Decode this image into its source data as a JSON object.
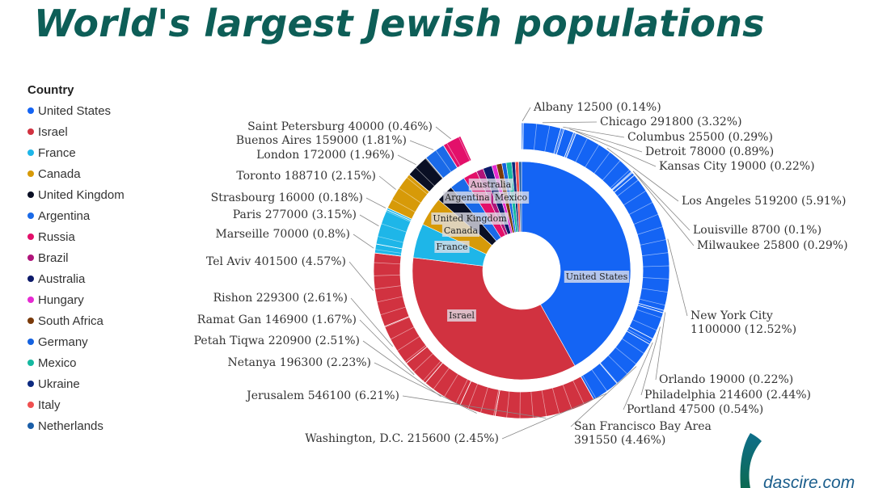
{
  "title": "World's largest Jewish populations",
  "legend": {
    "title": "Country",
    "items": [
      {
        "label": "United States",
        "color": "#1464f4"
      },
      {
        "label": "Israel",
        "color": "#d13240"
      },
      {
        "label": "France",
        "color": "#1eb6e8"
      },
      {
        "label": "Canada",
        "color": "#d79a08"
      },
      {
        "label": "United Kingdom",
        "color": "#0a0f24"
      },
      {
        "label": "Argentina",
        "color": "#1a6ae8"
      },
      {
        "label": "Russia",
        "color": "#e3106a"
      },
      {
        "label": "Brazil",
        "color": "#b0147a"
      },
      {
        "label": "Australia",
        "color": "#0d1a6a"
      },
      {
        "label": "Hungary",
        "color": "#e62ad2"
      },
      {
        "label": "South Africa",
        "color": "#7a3a0a"
      },
      {
        "label": "Germany",
        "color": "#1462e0"
      },
      {
        "label": "Mexico",
        "color": "#15b8a0"
      },
      {
        "label": "Ukraine",
        "color": "#0d2a80"
      },
      {
        "label": "Italy",
        "color": "#f05050"
      },
      {
        "label": "Netherlands",
        "color": "#1a5ea8"
      }
    ]
  },
  "chart_data": {
    "type": "sunburst",
    "title": "World's largest Jewish populations",
    "inner_ring": [
      {
        "country": "United States",
        "label": "United States",
        "share": 0.3615
      },
      {
        "country": "Israel",
        "label": "Israel",
        "share": 0.3025
      },
      {
        "country": "France",
        "label": "France",
        "share": 0.0438
      },
      {
        "country": "Canada",
        "label": "Canada",
        "share": 0.037
      },
      {
        "country": "United Kingdom",
        "label": "United Kingdom",
        "share": 0.022
      },
      {
        "country": "Argentina",
        "label": "Argentina",
        "share": 0.02
      },
      {
        "country": "Russia",
        "label": "",
        "share": 0.018
      },
      {
        "country": "Brazil",
        "label": "",
        "share": 0.009
      },
      {
        "country": "Australia",
        "label": "Australia",
        "share": 0.0115
      },
      {
        "country": "Hungary",
        "label": "",
        "share": 0.006
      },
      {
        "country": "South Africa",
        "label": "",
        "share": 0.007
      },
      {
        "country": "Germany",
        "label": "",
        "share": 0.0055
      },
      {
        "country": "Mexico",
        "label": "Mexico",
        "share": 0.007
      },
      {
        "country": "Ukraine",
        "label": "",
        "share": 0.0045
      },
      {
        "country": "Italy",
        "label": "",
        "share": 0.0045
      },
      {
        "country": "Netherlands",
        "label": "",
        "share": 0.0035
      }
    ],
    "outer_ring": [
      {
        "country": "United States",
        "city": "Albany",
        "value": 12500,
        "percent": "0.14%",
        "label": "Albany 12500 (0.14%)"
      },
      {
        "country": "United States",
        "city": "Chicago",
        "value": 291800,
        "percent": "3.32%",
        "label": "Chicago 291800 (3.32%)"
      },
      {
        "country": "United States",
        "city": "Columbus",
        "value": 25500,
        "percent": "0.29%",
        "label": "Columbus 25500 (0.29%)"
      },
      {
        "country": "United States",
        "city": "Detroit",
        "value": 78000,
        "percent": "0.89%",
        "label": "Detroit 78000 (0.89%)"
      },
      {
        "country": "United States",
        "city": "Kansas City",
        "value": 19000,
        "percent": "0.22%",
        "label": "Kansas City 19000 (0.22%)"
      },
      {
        "country": "United States",
        "city": "Los Angeles",
        "value": 519200,
        "percent": "5.91%",
        "label": "Los Angeles 519200 (5.91%)"
      },
      {
        "country": "United States",
        "city": "Louisville",
        "value": 8700,
        "percent": "0.1%",
        "label": "Louisville 8700 (0.1%)"
      },
      {
        "country": "United States",
        "city": "Milwaukee",
        "value": 25800,
        "percent": "0.29%",
        "label": "Milwaukee 25800 (0.29%)"
      },
      {
        "country": "United States",
        "city": "New York City",
        "value": 1100000,
        "percent": "12.52%",
        "label": "New York City",
        "label2": "1100000 (12.52%)"
      },
      {
        "country": "United States",
        "city": "Orlando",
        "value": 19000,
        "percent": "0.22%",
        "label": "Orlando 19000 (0.22%)"
      },
      {
        "country": "United States",
        "city": "Philadelphia",
        "value": 214600,
        "percent": "2.44%",
        "label": "Philadelphia 214600 (2.44%)"
      },
      {
        "country": "United States",
        "city": "Portland",
        "value": 47500,
        "percent": "0.54%",
        "label": "Portland 47500 (0.54%)"
      },
      {
        "country": "United States",
        "city": "San Francisco Bay Area",
        "value": 391550,
        "percent": "4.46%",
        "label": "San Francisco Bay Area",
        "label2": "391550 (4.46%)"
      },
      {
        "country": "United States",
        "city": "Washington, D.C.",
        "value": 215600,
        "percent": "2.45%",
        "label": "Washington, D.C. 215600 (2.45%)"
      },
      {
        "country": "Israel",
        "city": "Jerusalem",
        "value": 546100,
        "percent": "6.21%",
        "label": "Jerusalem 546100 (6.21%)"
      },
      {
        "country": "Israel",
        "city": "Netanya",
        "value": 196300,
        "percent": "2.23%",
        "label": "Netanya 196300 (2.23%)"
      },
      {
        "country": "Israel",
        "city": "Petah Tiqwa",
        "value": 220900,
        "percent": "2.51%",
        "label": "Petah Tiqwa 220900 (2.51%)"
      },
      {
        "country": "Israel",
        "city": "Ramat Gan",
        "value": 146900,
        "percent": "1.67%",
        "label": "Ramat Gan 146900 (1.67%)"
      },
      {
        "country": "Israel",
        "city": "Rishon",
        "value": 229300,
        "percent": "2.61%",
        "label": "Rishon 229300 (2.61%)"
      },
      {
        "country": "Israel",
        "city": "Tel Aviv",
        "value": 401500,
        "percent": "4.57%",
        "label": "Tel Aviv 401500 (4.57%)"
      },
      {
        "country": "France",
        "city": "Marseille",
        "value": 70000,
        "percent": "0.8%",
        "label": "Marseille 70000 (0.8%)"
      },
      {
        "country": "France",
        "city": "Paris",
        "value": 277000,
        "percent": "3.15%",
        "label": "Paris 277000 (3.15%)"
      },
      {
        "country": "France",
        "city": "Strasbourg",
        "value": 16000,
        "percent": "0.18%",
        "label": "Strasbourg 16000 (0.18%)"
      },
      {
        "country": "Canada",
        "city": "Toronto",
        "value": 188710,
        "percent": "2.15%",
        "label": "Toronto 188710 (2.15%)"
      },
      {
        "country": "United Kingdom",
        "city": "London",
        "value": 172000,
        "percent": "1.96%",
        "label": "London 172000 (1.96%)"
      },
      {
        "country": "Argentina",
        "city": "Buenos Aires",
        "value": 159000,
        "percent": "1.81%",
        "label": "Buenos Aires 159000 (1.81%)"
      },
      {
        "country": "Russia",
        "city": "Saint Petersburg",
        "value": 40000,
        "percent": "0.46%",
        "label": "Saint Petersburg 40000 (0.46%)"
      }
    ]
  },
  "watermark": "dascire.com"
}
